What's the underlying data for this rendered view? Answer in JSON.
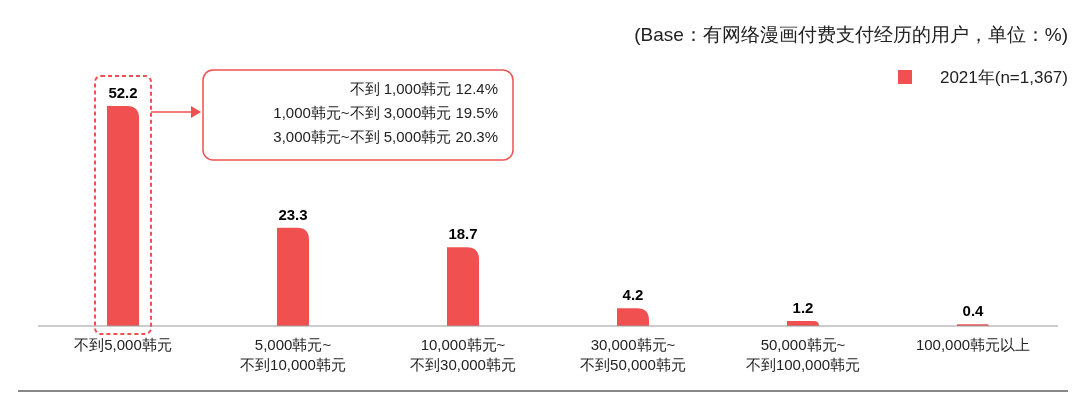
{
  "chart_data": {
    "type": "bar",
    "subtitle": "(Base：有网络漫画付费支付经历的用户，单位：%)",
    "categories": [
      "不到5,000韩元",
      "5,000韩元~\n不到10,000韩元",
      "10,000韩元~\n不到30,000韩元",
      "30,000韩元~\n不到50,000韩元",
      "50,000韩元~\n不到100,000韩元",
      "100,000韩元以上"
    ],
    "series": [
      {
        "name": "2021年(n=1,367)",
        "color": "#f05050",
        "values": [
          52.2,
          23.3,
          18.7,
          4.2,
          1.2,
          0.4
        ]
      }
    ],
    "data_labels": true,
    "legend": "top right",
    "annotations": [
      "不到 1,000韩元  12.4%",
      "1,000韩元~不到 3,000韩元  19.5%",
      "3,000韩元~不到 5,000韩元  20.3%"
    ]
  }
}
